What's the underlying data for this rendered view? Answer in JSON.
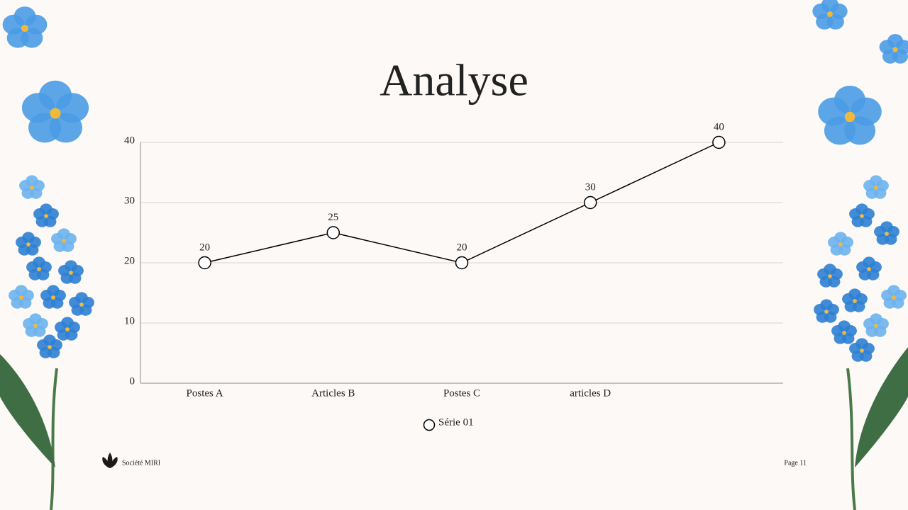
{
  "chart_data": {
    "type": "line",
    "title": "Analyse",
    "categories": [
      "Postes A",
      "Articles B",
      "Postes C",
      "articles D",
      null
    ],
    "series": [
      {
        "name": "Série 01",
        "color": "#000000",
        "values": [
          20,
          25,
          20,
          30,
          40
        ]
      }
    ],
    "ylim": [
      0,
      40
    ],
    "yticks": [
      0,
      10,
      20,
      30,
      40
    ],
    "grid": true
  },
  "footer": {
    "company": "Société MIRI",
    "page": "Page 11"
  }
}
